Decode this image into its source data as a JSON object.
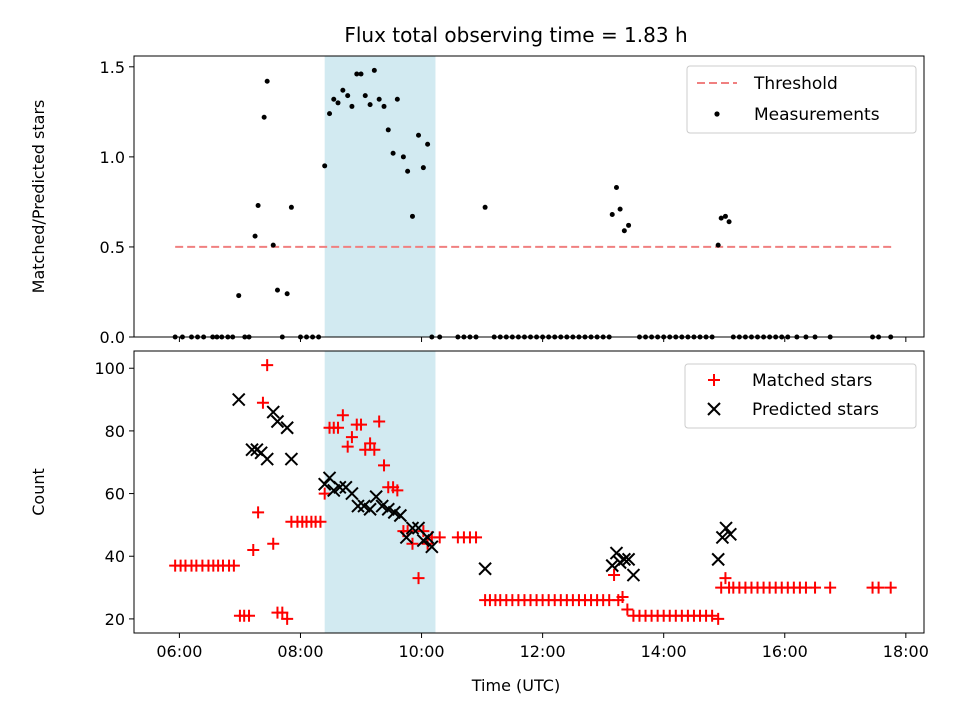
{
  "title": "Flux total observing time = 1.83 h",
  "colors": {
    "threshold": "#f08080",
    "measurement": "#000000",
    "matched": "#ff0000",
    "predicted": "#000000",
    "highlight": "#add8e6"
  },
  "chart_data": [
    {
      "type": "scatter",
      "ylabel": "Matched/Predicted stars",
      "xlabel": "",
      "xlim": [
        5.25,
        18.3
      ],
      "ylim": [
        0,
        1.56
      ],
      "yticks": [
        0.0,
        0.5,
        1.0,
        1.5
      ],
      "ytick_labels": [
        "0.0",
        "0.5",
        "1.0",
        "1.5"
      ],
      "xticks": [
        6,
        8,
        10,
        12,
        14,
        16,
        18
      ],
      "highlight_span": [
        8.4,
        10.23
      ],
      "legend_position": "top-right",
      "legend": [
        "Threshold",
        "Measurements"
      ],
      "series": [
        {
          "name": "Threshold",
          "style": "dashed-line",
          "x": [
            5.93,
            17.78
          ],
          "y": [
            0.5,
            0.5
          ]
        },
        {
          "name": "Measurements",
          "style": "dot",
          "x": [
            5.93,
            6.05,
            6.2,
            6.3,
            6.4,
            6.55,
            6.62,
            6.7,
            6.8,
            6.88,
            6.98,
            7.08,
            7.15,
            7.25,
            7.3,
            7.4,
            7.45,
            7.55,
            7.62,
            7.7,
            7.78,
            7.85,
            8.0,
            8.1,
            8.2,
            8.3,
            8.4,
            8.48,
            8.55,
            8.62,
            8.7,
            8.78,
            8.85,
            8.93,
            9.0,
            9.07,
            9.15,
            9.22,
            9.3,
            9.38,
            9.45,
            9.53,
            9.6,
            9.7,
            9.77,
            9.85,
            9.95,
            10.03,
            10.1,
            10.17,
            10.3,
            10.6,
            10.7,
            10.8,
            10.9,
            11.05,
            11.2,
            11.3,
            11.4,
            11.5,
            11.6,
            11.7,
            11.8,
            11.9,
            12.0,
            12.1,
            12.2,
            12.3,
            12.4,
            12.5,
            12.6,
            12.7,
            12.8,
            12.9,
            13.0,
            13.1,
            13.15,
            13.22,
            13.28,
            13.35,
            13.42,
            13.6,
            13.7,
            13.8,
            13.9,
            14.0,
            14.1,
            14.2,
            14.3,
            14.4,
            14.5,
            14.6,
            14.7,
            14.8,
            14.9,
            14.95,
            15.02,
            15.08,
            15.15,
            15.25,
            15.35,
            15.45,
            15.55,
            15.65,
            15.75,
            15.85,
            15.95,
            16.05,
            16.2,
            16.35,
            16.5,
            16.75,
            17.45,
            17.55,
            17.75
          ],
          "y": [
            0,
            0,
            0,
            0,
            0,
            0,
            0,
            0,
            0,
            0,
            0.23,
            0,
            0,
            0.56,
            0.73,
            1.22,
            1.42,
            0.51,
            0.26,
            0,
            0.24,
            0.72,
            0,
            0,
            0,
            0,
            0.95,
            1.24,
            1.32,
            1.3,
            1.37,
            1.34,
            1.28,
            1.46,
            1.46,
            1.34,
            1.29,
            1.48,
            1.32,
            1.28,
            1.15,
            1.02,
            1.32,
            1.0,
            0.92,
            0.67,
            1.12,
            0.94,
            1.07,
            0,
            0,
            0,
            0,
            0,
            0,
            0.72,
            0,
            0,
            0,
            0,
            0,
            0,
            0,
            0,
            0,
            0,
            0,
            0,
            0,
            0,
            0,
            0,
            0,
            0,
            0,
            0,
            0.68,
            0.83,
            0.71,
            0.59,
            0.62,
            0,
            0,
            0,
            0,
            0,
            0,
            0,
            0,
            0,
            0,
            0,
            0,
            0,
            0.51,
            0.66,
            0.67,
            0.64,
            0,
            0,
            0,
            0,
            0,
            0,
            0,
            0,
            0,
            0,
            0,
            0,
            0,
            0,
            0,
            0,
            0
          ]
        }
      ]
    },
    {
      "type": "scatter",
      "ylabel": "Count",
      "xlabel": "Time (UTC)",
      "xlim": [
        5.25,
        18.3
      ],
      "ylim": [
        15.5,
        105.5
      ],
      "yticks": [
        20,
        40,
        60,
        80,
        100
      ],
      "ytick_labels": [
        "20",
        "40",
        "60",
        "80",
        "100"
      ],
      "xticks": [
        6,
        8,
        10,
        12,
        14,
        16,
        18
      ],
      "xtick_labels": [
        "06:00",
        "08:00",
        "10:00",
        "12:00",
        "14:00",
        "16:00",
        "18:00"
      ],
      "highlight_span": [
        8.4,
        10.23
      ],
      "legend_position": "top-right",
      "legend": [
        "Matched stars",
        "Predicted stars"
      ],
      "series": [
        {
          "name": "Matched stars",
          "style": "plus",
          "x": [
            5.93,
            6.02,
            6.1,
            6.2,
            6.28,
            6.38,
            6.48,
            6.56,
            6.64,
            6.72,
            6.82,
            6.9,
            7.0,
            7.07,
            7.15,
            7.22,
            7.3,
            7.38,
            7.45,
            7.55,
            7.62,
            7.7,
            7.78,
            7.85,
            7.95,
            8.03,
            8.1,
            8.18,
            8.25,
            8.33,
            8.4,
            8.48,
            8.55,
            8.62,
            8.7,
            8.78,
            8.85,
            8.93,
            9.0,
            9.07,
            9.15,
            9.22,
            9.3,
            9.38,
            9.45,
            9.53,
            9.6,
            9.7,
            9.77,
            9.85,
            9.95,
            10.03,
            10.1,
            10.17,
            10.3,
            10.6,
            10.7,
            10.8,
            10.9,
            11.05,
            11.13,
            11.22,
            11.3,
            11.4,
            11.5,
            11.6,
            11.7,
            11.8,
            11.9,
            12.0,
            12.1,
            12.2,
            12.3,
            12.4,
            12.5,
            12.6,
            12.7,
            12.8,
            12.9,
            13.0,
            13.1,
            13.18,
            13.25,
            13.32,
            13.4,
            13.5,
            13.6,
            13.7,
            13.8,
            13.9,
            14.0,
            14.1,
            14.2,
            14.3,
            14.4,
            14.5,
            14.6,
            14.7,
            14.8,
            14.9,
            14.95,
            15.02,
            15.08,
            15.15,
            15.25,
            15.35,
            15.45,
            15.55,
            15.65,
            15.75,
            15.85,
            15.95,
            16.05,
            16.15,
            16.25,
            16.35,
            16.5,
            16.75,
            17.45,
            17.55,
            17.75
          ],
          "y": [
            37,
            37,
            37,
            37,
            37,
            37,
            37,
            37,
            37,
            37,
            37,
            37,
            21,
            21,
            21,
            42,
            54,
            89,
            101,
            44,
            22,
            22,
            20,
            51,
            51,
            51,
            51,
            51,
            51,
            51,
            60,
            81,
            81,
            81,
            85,
            75,
            78,
            82,
            82,
            74,
            76,
            74,
            83,
            69,
            62,
            62,
            61,
            48,
            48,
            44,
            33,
            48,
            44,
            46,
            46,
            46,
            46,
            46,
            46,
            26,
            26,
            26,
            26,
            26,
            26,
            26,
            26,
            26,
            26,
            26,
            26,
            26,
            26,
            26,
            26,
            26,
            26,
            26,
            26,
            26,
            26,
            34,
            26,
            27,
            23,
            21,
            21,
            21,
            21,
            21,
            21,
            21,
            21,
            21,
            21,
            21,
            21,
            21,
            21,
            20,
            30,
            33,
            30,
            30,
            30,
            30,
            30,
            30,
            30,
            30,
            30,
            30,
            30,
            30,
            30,
            30,
            30,
            30,
            30,
            30,
            30
          ]
        },
        {
          "name": "Predicted stars",
          "style": "x",
          "x": [
            6.98,
            7.2,
            7.28,
            7.35,
            7.45,
            7.55,
            7.62,
            7.78,
            7.85,
            8.4,
            8.48,
            8.55,
            8.65,
            8.75,
            8.85,
            8.95,
            9.05,
            9.15,
            9.25,
            9.35,
            9.45,
            9.55,
            9.65,
            9.75,
            9.85,
            9.95,
            10.03,
            10.1,
            10.17,
            11.05,
            13.15,
            13.22,
            13.28,
            13.35,
            13.42,
            13.5,
            14.9,
            14.97,
            15.03,
            15.1
          ],
          "y": [
            90,
            74,
            74,
            73,
            71,
            86,
            83,
            81,
            71,
            63,
            65,
            61,
            62,
            62,
            60,
            56,
            56,
            55,
            59,
            56,
            55,
            54,
            53,
            46,
            49,
            49,
            45,
            46,
            43,
            36,
            37,
            41,
            38,
            39,
            39,
            34,
            39,
            46,
            49,
            47
          ]
        }
      ]
    }
  ]
}
